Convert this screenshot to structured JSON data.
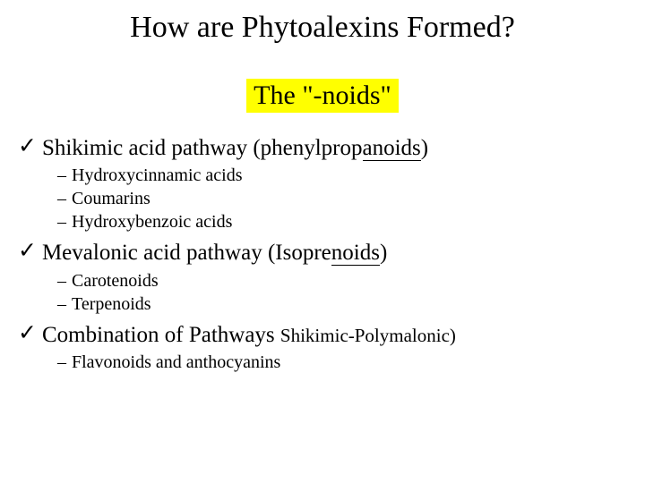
{
  "slide": {
    "title": "How are Phytoalexins Formed?",
    "subtitle": "The \"-noids\"",
    "items": [
      {
        "prefix": "Shikimic acid pathway (phenylprop",
        "underlined": "anoids",
        "suffix": ")",
        "subs": [
          "Hydroxycinnamic acids",
          "Coumarins",
          "Hydroxybenzoic acids"
        ]
      },
      {
        "prefix": "Mevalonic acid pathway (Isopre",
        "underlined": "noids",
        "suffix": ")",
        "subs": [
          "Carotenoids",
          "Terpenoids"
        ]
      },
      {
        "prefix": "Combination of Pathways ",
        "small": "Shikimic-Polymalonic)",
        "subs": [
          "Flavonoids and anthocyanins"
        ]
      }
    ]
  },
  "glyphs": {
    "check": "✓",
    "dash": "–"
  },
  "colors": {
    "highlight": "#ffff00",
    "text": "#000000",
    "background": "#ffffff"
  },
  "fonts": {
    "title_size": 34,
    "subtitle_size": 30,
    "main_size": 25,
    "sub_size": 20
  }
}
